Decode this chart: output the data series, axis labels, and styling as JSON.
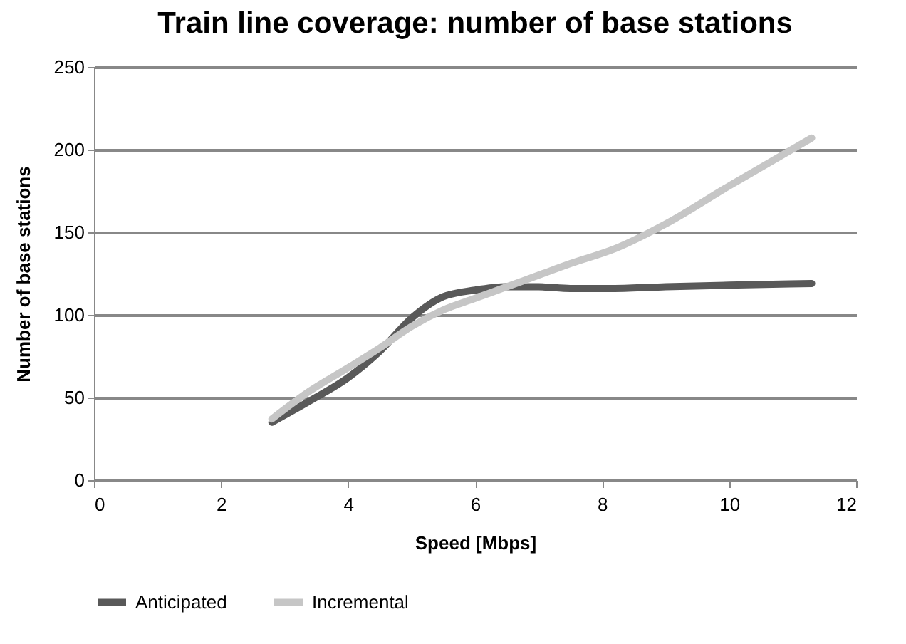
{
  "chart_data": {
    "type": "line",
    "title": "Train line coverage: number of base stations",
    "xlabel": "Speed [Mbps]",
    "ylabel": "Number of base stations",
    "series": [
      {
        "name": "Anticipated",
        "color": "#595959",
        "x": [
          2.8,
          3.4,
          4,
          4.5,
          5,
          5.5,
          6,
          6.5,
          7,
          7.5,
          8.2,
          9,
          10,
          11.3
        ],
        "values": [
          35,
          48,
          62,
          78,
          98,
          111,
          115,
          117,
          117,
          116,
          116,
          117,
          118,
          119
        ]
      },
      {
        "name": "Incremental",
        "color": "#c6c6c6",
        "x": [
          2.8,
          3.4,
          4,
          4.5,
          5,
          5.5,
          6,
          6.5,
          7,
          7.5,
          8.2,
          9,
          10,
          11.3
        ],
        "values": [
          37,
          54,
          68,
          80,
          93,
          103,
          110,
          117,
          124,
          131,
          140,
          155,
          178,
          207
        ]
      }
    ],
    "xlim": [
      0,
      12
    ],
    "xticks": [
      0,
      2,
      4,
      6,
      8,
      10,
      12
    ],
    "ylim": [
      0,
      250
    ],
    "yticks": [
      0,
      50,
      100,
      150,
      200,
      250
    ],
    "grid": "y",
    "legend": "bottom",
    "marker": "none",
    "line_style": "solid"
  }
}
